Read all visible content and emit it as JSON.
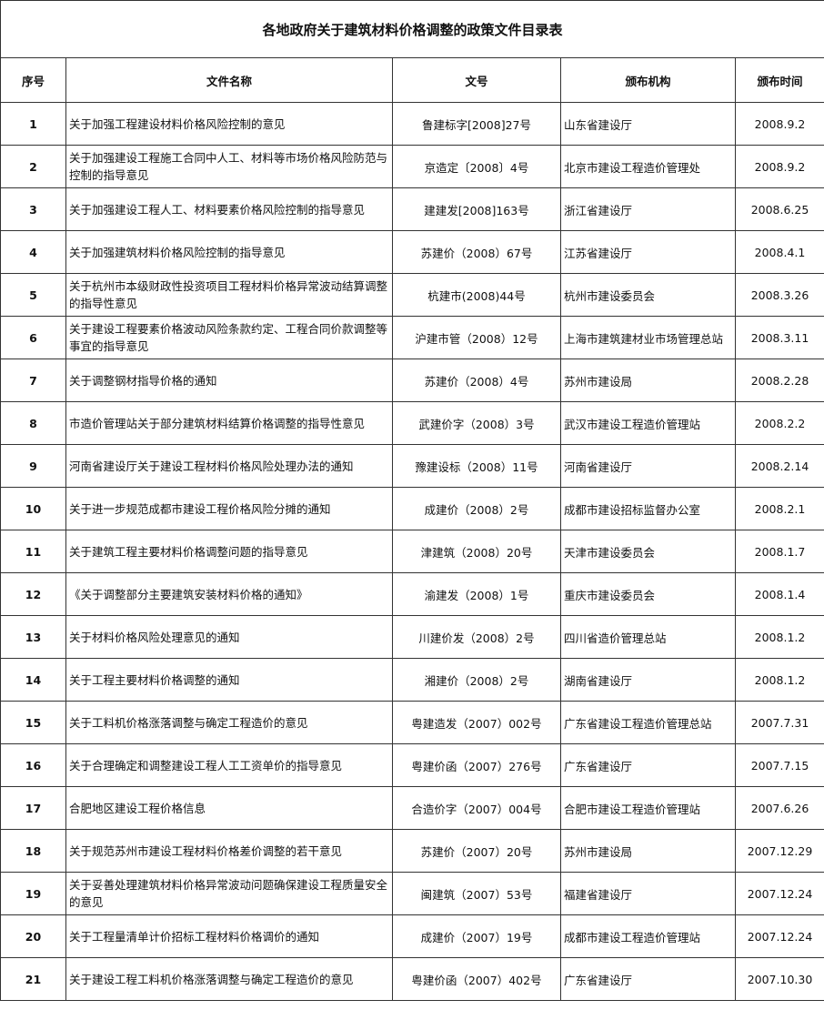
{
  "title": "各地政府关于建筑材料价格调整的政策文件目录表",
  "columns": [
    "序号",
    "文件名称",
    "文号",
    "颁布机构",
    "颁布时间"
  ],
  "rows": [
    [
      "1",
      "关于加强工程建设材料价格风险控制的意见",
      "鲁建标字[2008]27号",
      "山东省建设厅",
      "2008.9.2"
    ],
    [
      "2",
      "关于加强建设工程施工合同中人工、材料等市场价格风险防范与控制的指导意见",
      "京造定〔2008〕4号",
      "北京市建设工程造价管理处",
      "2008.9.2"
    ],
    [
      "3",
      "关于加强建设工程人工、材料要素价格风险控制的指导意见",
      "建建发[2008]163号",
      "浙江省建设厅",
      "2008.6.25"
    ],
    [
      "4",
      "关于加强建筑材料价格风险控制的指导意见",
      "苏建价（2008）67号",
      "江苏省建设厅",
      "2008.4.1"
    ],
    [
      "5",
      "关于杭州市本级财政性投资项目工程材料价格异常波动结算调整的指导性意见",
      "杭建市(2008)44号",
      "杭州市建设委员会",
      "2008.3.26"
    ],
    [
      "6",
      "关于建设工程要素价格波动风险条款约定、工程合同价款调整等事宜的指导意见",
      "沪建市管（2008）12号",
      "上海市建筑建材业市场管理总站",
      "2008.3.11"
    ],
    [
      "7",
      "关于调整钢材指导价格的通知",
      "苏建价（2008）4号",
      "苏州市建设局",
      "2008.2.28"
    ],
    [
      "8",
      "市造价管理站关于部分建筑材料结算价格调整的指导性意见",
      "武建价字（2008）3号",
      "武汉市建设工程造价管理站",
      "2008.2.2"
    ],
    [
      "9",
      "河南省建设厅关于建设工程材料价格风险处理办法的通知",
      "豫建设标（2008）11号",
      "河南省建设厅",
      "2008.2.14"
    ],
    [
      "10",
      "关于进一步规范成都市建设工程价格风险分摊的通知",
      "成建价（2008）2号",
      "成都市建设招标监督办公室",
      "2008.2.1"
    ],
    [
      "11",
      "关于建筑工程主要材料价格调整问题的指导意见",
      "津建筑（2008）20号",
      "天津市建设委员会",
      "2008.1.7"
    ],
    [
      "12",
      "《关于调整部分主要建筑安装材料价格的通知》",
      "渝建发（2008）1号",
      "重庆市建设委员会",
      "2008.1.4"
    ],
    [
      "13",
      "关于材料价格风险处理意见的通知",
      "川建价发（2008）2号",
      "四川省造价管理总站",
      "2008.1.2"
    ],
    [
      "14",
      "关于工程主要材料价格调整的通知",
      "湘建价（2008）2号",
      "湖南省建设厅",
      "2008.1.2"
    ],
    [
      "15",
      "关于工料机价格涨落调整与确定工程造价的意见",
      "粤建造发（2007）002号",
      "广东省建设工程造价管理总站",
      "2007.7.31"
    ],
    [
      "16",
      "关于合理确定和调整建设工程人工工资单价的指导意见",
      "粤建价函（2007）276号",
      " 广东省建设厅",
      "2007.7.15"
    ],
    [
      "17",
      "合肥地区建设工程价格信息",
      "合造价字（2007）004号",
      "合肥市建设工程造价管理站",
      "2007.6.26"
    ],
    [
      "18",
      "关于规范苏州市建设工程材料价格差价调整的若干意见",
      "苏建价（2007）20号",
      "苏州市建设局",
      "2007.12.29"
    ],
    [
      "19",
      "关于妥善处理建筑材料价格异常波动问题确保建设工程质量安全的意见",
      "闽建筑（2007）53号",
      "福建省建设厅",
      "2007.12.24"
    ],
    [
      "20",
      "关于工程量清单计价招标工程材料价格调价的通知",
      "成建价（2007）19号",
      "成都市建设工程造价管理站",
      "2007.12.24"
    ],
    [
      "21",
      "关于建设工程工料机价格涨落调整与确定工程造价的意见",
      "粤建价函（2007）402号",
      " 广东省建设厅",
      "2007.10.30"
    ]
  ]
}
